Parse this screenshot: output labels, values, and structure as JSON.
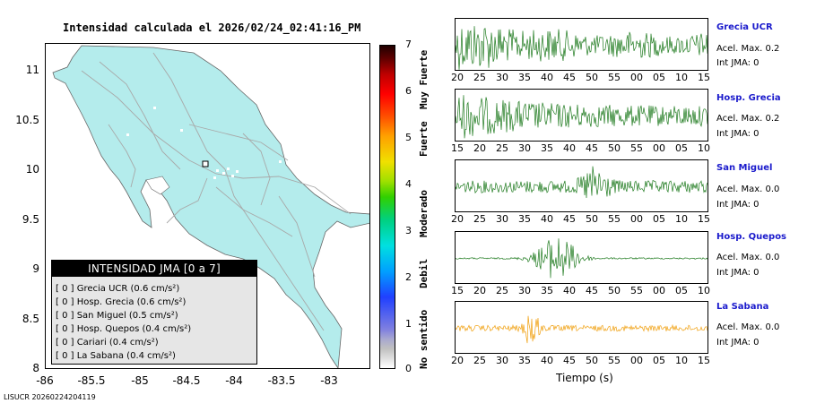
{
  "map": {
    "title": "Intensidad calculada el 2026/02/24_02:41:16_PM",
    "y_ticks": [
      "11",
      "10.5",
      "10",
      "9.5",
      "9",
      "8.5",
      "8"
    ],
    "x_ticks": [
      "-86",
      "-85.5",
      "-85",
      "-84.5",
      "-84",
      "-83.5",
      "-83"
    ],
    "land_color": "#b4ecec",
    "road_color": "#a8a8a8"
  },
  "legend": {
    "title": "INTENSIDAD JMA [0 a 7]",
    "items": [
      {
        "label": "[ 0 ]  Grecia UCR (0.6 cm/s²)"
      },
      {
        "label": "[ 0 ]  Hosp. Grecia (0.6 cm/s²)"
      },
      {
        "label": "[ 0 ]  San Miguel (0.5 cm/s²)"
      },
      {
        "label": "[ 0 ]  Hosp. Quepos (0.4 cm/s²)"
      },
      {
        "label": "[ 0 ]  Cariari (0.4 cm/s²)"
      },
      {
        "label": "[ 0 ]  La Sabana (0.4 cm/s²)"
      }
    ]
  },
  "colorbar": {
    "ticks": [
      "7",
      "6",
      "5",
      "4",
      "3",
      "2",
      "1",
      "0"
    ],
    "labels": [
      "Muy Fuerte",
      "Fuerte",
      "Moderado",
      "Debil",
      "No sentido"
    ]
  },
  "stations": [
    {
      "name": "Grecia UCR",
      "acel": "Acel. Max. 0.2",
      "int": "Int JMA: 0",
      "color": "#1e7a1e",
      "ticks": [
        "20",
        "25",
        "30",
        "35",
        "40",
        "45",
        "50",
        "55",
        "00",
        "05",
        "10",
        "15"
      ]
    },
    {
      "name": "Hosp. Grecia",
      "acel": "Acel. Max. 0.2",
      "int": "Int JMA: 0",
      "color": "#1e7a1e",
      "ticks": [
        "15",
        "20",
        "25",
        "30",
        "35",
        "40",
        "45",
        "50",
        "55",
        "00",
        "05",
        "10"
      ]
    },
    {
      "name": "San Miguel",
      "acel": "Acel. Max. 0.0",
      "int": "Int JMA: 0",
      "color": "#1e7a1e",
      "ticks": [
        "20",
        "25",
        "30",
        "35",
        "40",
        "45",
        "50",
        "55",
        "00",
        "05",
        "10",
        "15"
      ]
    },
    {
      "name": "Hosp. Quepos",
      "acel": "Acel. Max. 0.0",
      "int": "Int JMA: 0",
      "color": "#1e7a1e",
      "ticks": [
        "15",
        "20",
        "25",
        "30",
        "35",
        "40",
        "45",
        "50",
        "55",
        "00",
        "05",
        "10"
      ]
    },
    {
      "name": "La Sabana",
      "acel": "Acel. Max. 0.0",
      "int": "Int JMA: 0",
      "color": "#f0a010",
      "ticks": [
        "20",
        "25",
        "30",
        "35",
        "40",
        "45",
        "50",
        "55",
        "00",
        "05",
        "10",
        "15"
      ]
    }
  ],
  "waveforms": {
    "xlabel": "Tiempo (s)"
  },
  "footer": "LISUCR 20260224204119"
}
